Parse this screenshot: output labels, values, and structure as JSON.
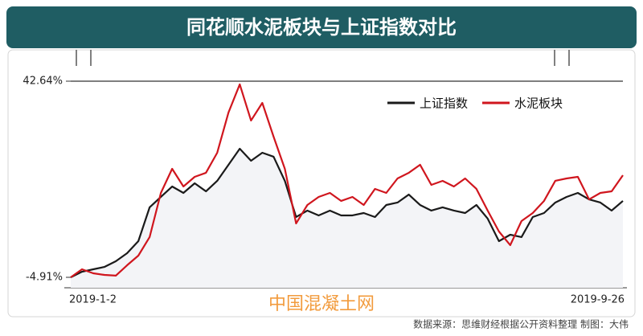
{
  "chart_data": {
    "type": "line",
    "title": "同花顺水泥板块与上证指数对比",
    "categories": [
      "2019-1-2",
      null,
      null,
      null,
      null,
      null,
      null,
      null,
      null,
      null,
      null,
      null,
      null,
      null,
      null,
      null,
      null,
      null,
      null,
      null,
      null,
      null,
      null,
      null,
      null,
      null,
      null,
      null,
      null,
      null,
      null,
      null,
      null,
      null,
      null,
      null,
      null,
      null,
      null,
      null,
      null,
      null,
      null,
      null,
      null,
      null,
      null,
      null,
      null,
      "2019-9-26"
    ],
    "series": [
      {
        "name": "上证指数",
        "color": "#1a1a1a",
        "values": [
          -4.91,
          -3.55,
          -2.96,
          -2.38,
          -1.01,
          0.94,
          3.86,
          12.05,
          14.58,
          17.11,
          15.55,
          17.89,
          15.94,
          18.48,
          22.38,
          26.27,
          23.35,
          25.3,
          24.33,
          18.48,
          9.71,
          11.27,
          10.1,
          11.27,
          10.1,
          10.1,
          10.68,
          9.71,
          12.63,
          13.22,
          15.16,
          12.63,
          11.27,
          12.05,
          11.27,
          10.68,
          12.63,
          9.32,
          3.86,
          5.42,
          4.84,
          9.71,
          10.68,
          13.22,
          14.58,
          15.55,
          13.98,
          13.22,
          11.27,
          13.61
        ]
      },
      {
        "name": "水泥板块",
        "color": "#d0161e",
        "values": [
          -4.91,
          -2.96,
          -3.94,
          -4.33,
          -4.5,
          -1.99,
          0.35,
          4.84,
          15.55,
          21.4,
          17.11,
          19.45,
          20.43,
          25.3,
          35.05,
          41.87,
          33.1,
          37.38,
          29.2,
          21.4,
          8.15,
          12.63,
          14.58,
          15.55,
          13.61,
          14.58,
          12.63,
          16.53,
          15.55,
          19.06,
          20.43,
          22.38,
          17.5,
          18.48,
          17.11,
          19.06,
          16.53,
          11.27,
          6.2,
          2.89,
          8.73,
          10.68,
          13.61,
          18.48,
          19.06,
          19.45,
          13.98,
          15.55,
          15.94,
          19.84
        ]
      }
    ],
    "ylim": [
      -4.91,
      42.64
    ],
    "yticks": [
      {
        "value": -4.91,
        "label": "-4.91%"
      },
      {
        "value": 42.64,
        "label": "42.64%"
      }
    ],
    "legend": "top-right",
    "watermark": "中国混凝土网",
    "source": "数据来源：思维财经根据公开资料整理    制图：大伟"
  }
}
